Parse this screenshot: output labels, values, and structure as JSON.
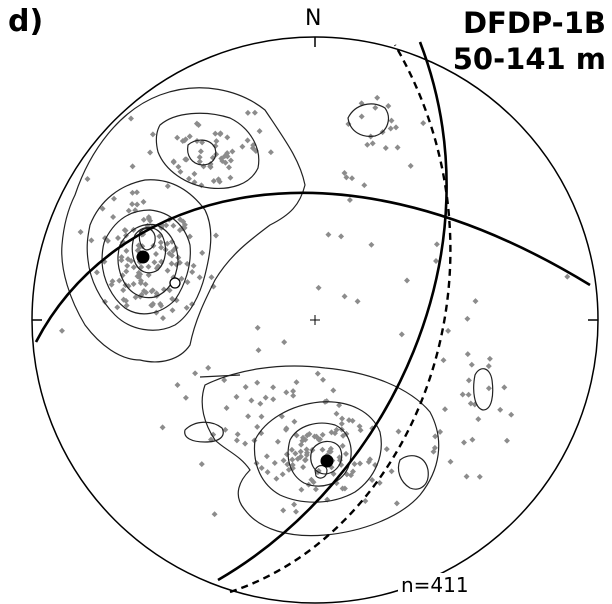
{
  "panel_label": "d)",
  "title": "DFDP-1B",
  "subtitle": "50-141 m",
  "north_label": "N",
  "count_label": "n=411",
  "colors": {
    "primitive": "#000000",
    "contour": "#222222",
    "points": "#8c8c8c",
    "great_circle": "#000000",
    "mean_pole": "#000000"
  },
  "legend_items": []
}
